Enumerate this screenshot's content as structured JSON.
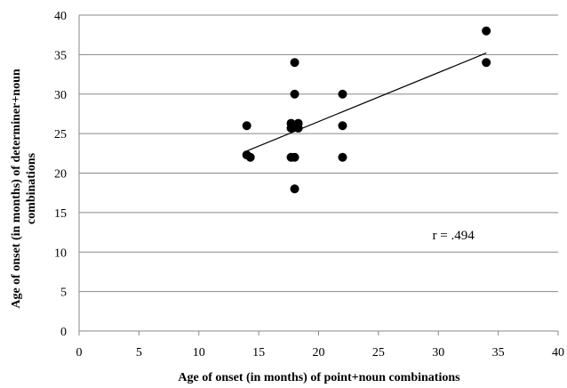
{
  "chart_data": {
    "type": "scatter",
    "xlabel": "Age of onset (in months) of point+noun combinations",
    "ylabel_lines": [
      "Age of onset (in months) of determiner+noun",
      "combinations"
    ],
    "xlim": [
      0,
      40
    ],
    "ylim": [
      0,
      40
    ],
    "x_ticks": [
      0,
      5,
      10,
      15,
      20,
      25,
      30,
      35,
      40
    ],
    "y_ticks": [
      0,
      5,
      10,
      15,
      20,
      25,
      30,
      35,
      40
    ],
    "grid": "horizontal",
    "points": [
      {
        "x": 14,
        "y": 26
      },
      {
        "x": 14,
        "y": 22.3
      },
      {
        "x": 14.3,
        "y": 22
      },
      {
        "x": 17.7,
        "y": 26.3
      },
      {
        "x": 17.7,
        "y": 25.7
      },
      {
        "x": 17.7,
        "y": 22
      },
      {
        "x": 18,
        "y": 34
      },
      {
        "x": 18,
        "y": 30
      },
      {
        "x": 18,
        "y": 22
      },
      {
        "x": 18,
        "y": 18
      },
      {
        "x": 18.3,
        "y": 26.3
      },
      {
        "x": 18.3,
        "y": 25.7
      },
      {
        "x": 22,
        "y": 30
      },
      {
        "x": 22,
        "y": 26
      },
      {
        "x": 22,
        "y": 22
      },
      {
        "x": 34,
        "y": 38
      },
      {
        "x": 34,
        "y": 34
      }
    ],
    "trendline": {
      "x": [
        14,
        34
      ],
      "y": [
        22.8,
        35.2
      ]
    },
    "annotation": {
      "text": "r = .494",
      "x": 29.5,
      "y": 11.6
    },
    "colors": {
      "marker": "#000000",
      "grid": "#888888",
      "axis": "#888888"
    }
  }
}
